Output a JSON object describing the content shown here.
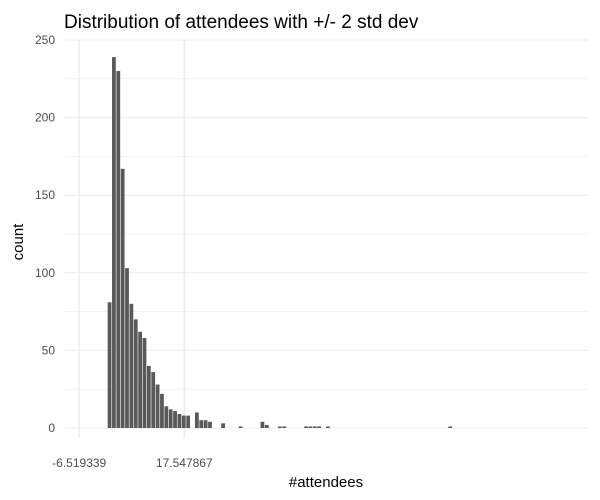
{
  "chart_data": {
    "type": "bar",
    "title": "Distribution of attendees with +/- 2 std dev",
    "xlabel": "#attendees",
    "ylabel": "count",
    "ylim": [
      0,
      250
    ],
    "y_ticks": [
      0,
      50,
      100,
      150,
      200,
      250
    ],
    "xlim": [
      -10,
      110
    ],
    "x_ticks": [
      {
        "value": -6.519339,
        "label": "-6.519339"
      },
      {
        "value": 17.547867,
        "label": "17.547867"
      }
    ],
    "bin_start": 0,
    "bin_width": 1,
    "values": [
      81,
      239,
      230,
      167,
      103,
      80,
      70,
      62,
      58,
      40,
      36,
      28,
      22,
      14,
      12,
      11,
      9,
      8,
      8,
      0,
      10,
      5,
      5,
      4,
      0,
      0,
      3,
      0,
      0,
      0,
      1,
      0,
      0,
      0,
      0,
      4,
      2,
      0,
      0,
      1,
      1,
      0,
      0,
      0,
      0,
      1,
      1,
      1,
      1,
      0,
      1,
      0,
      0,
      0,
      0,
      0,
      0,
      0,
      0,
      0,
      0,
      0,
      0,
      0,
      0,
      0,
      0,
      0,
      0,
      0,
      0,
      0,
      0,
      0,
      0,
      0,
      0,
      0,
      1
    ],
    "vlines": [
      -6.519339,
      17.547867
    ],
    "grid": true,
    "bar_color": "#595959",
    "grid_color": "#ebebeb",
    "vline_color": "#ebebeb"
  }
}
